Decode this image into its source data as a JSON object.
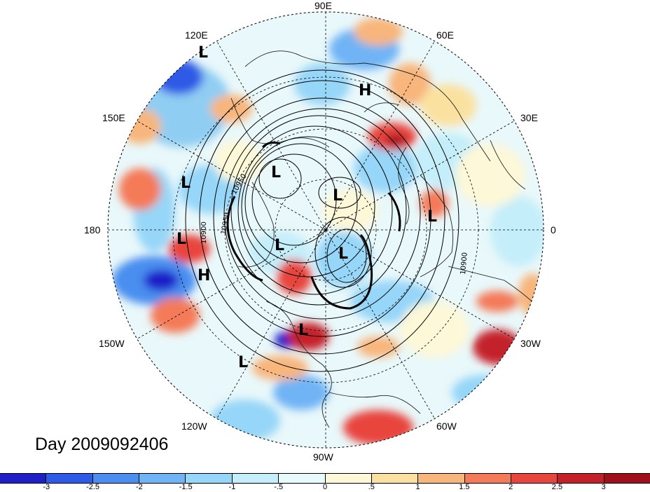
{
  "title": "Day 2009092406",
  "longitude_labels": {
    "lon_90e": "90E",
    "lon_60e": "60E",
    "lon_30e": "30E",
    "lon_0": "0",
    "lon_30w": "30W",
    "lon_60w": "60W",
    "lon_90w": "90W",
    "lon_120w": "120W",
    "lon_150w": "150W",
    "lon_180": "180",
    "lon_150e": "150E",
    "lon_120e": "120E"
  },
  "pressure_systems": [
    {
      "label": "L",
      "name": "low-120e"
    },
    {
      "label": "H",
      "name": "high-russia"
    },
    {
      "label": "L",
      "name": "low-east-siberia"
    },
    {
      "label": "L",
      "name": "low-bering"
    },
    {
      "label": "L",
      "name": "low-arctic"
    },
    {
      "label": "L",
      "name": "low-north-atlantic"
    },
    {
      "label": "L",
      "name": "low-aleutian"
    },
    {
      "label": "L",
      "name": "low-alaska"
    },
    {
      "label": "L",
      "name": "low-canada"
    },
    {
      "label": "H",
      "name": "high-north-pacific"
    },
    {
      "label": "L",
      "name": "low-great-lakes"
    },
    {
      "label": "L",
      "name": "low-east-pacific"
    }
  ],
  "contour_labels": [
    "10900",
    "10950",
    "10900",
    "10950"
  ],
  "colorbar": {
    "ticks": [
      "-3",
      "-2.5",
      "-2",
      "-1.5",
      "-1",
      "-.5",
      "0",
      ".5",
      "1",
      "1.5",
      "2",
      "2.5",
      "3"
    ],
    "colors": [
      "#1f1fc8",
      "#2d5ae6",
      "#4a8ef0",
      "#6fb4f5",
      "#96d6f8",
      "#c4eefa",
      "#e8fafb",
      "#fdf8d8",
      "#fbe1a0",
      "#f8b57c",
      "#f47a58",
      "#e8453e",
      "#c4202a",
      "#a0101c"
    ]
  }
}
